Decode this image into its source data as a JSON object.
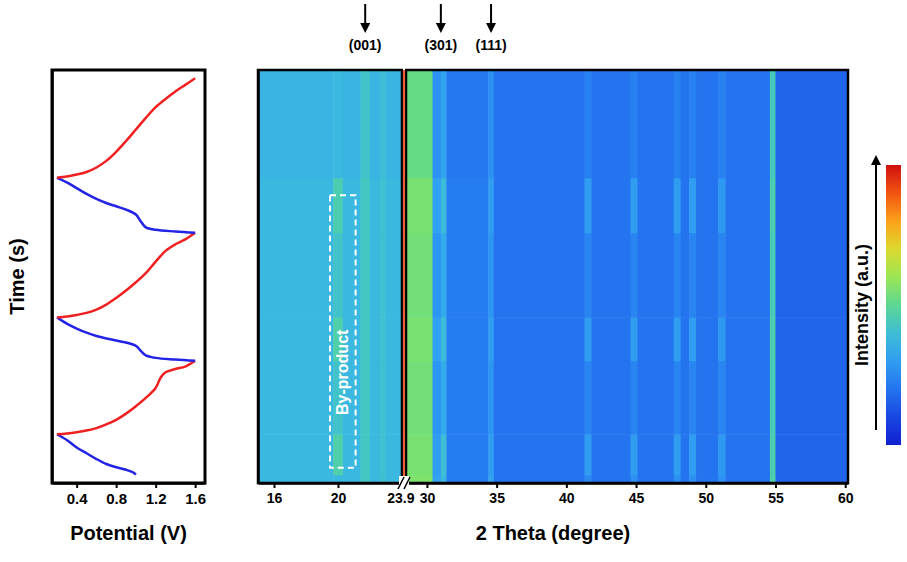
{
  "chart_data": [
    {
      "type": "line",
      "x_label": "Potential (V)",
      "y_label": "Time (s)",
      "xlim": [
        0.15,
        1.7
      ],
      "xticks": [
        0.4,
        0.8,
        1.2,
        1.6
      ],
      "ylim": [
        0,
        100
      ],
      "tick_labels": "x",
      "series": [
        {
          "color": "#2323e6",
          "x": [
            1.0,
            0.97,
            0.9,
            0.8,
            0.7,
            0.6,
            0.5,
            0.4,
            0.3,
            0.2
          ],
          "values": [
            2.0,
            2.6,
            3.2,
            3.8,
            4.6,
            5.8,
            7.2,
            8.6,
            10.4,
            11.8
          ]
        },
        {
          "color": "#f02020",
          "x": [
            0.2,
            0.3,
            0.4,
            0.5,
            0.6,
            0.7,
            0.8,
            0.9,
            1.0,
            1.1,
            1.2,
            1.25,
            1.3,
            1.4,
            1.5,
            1.6
          ],
          "values": [
            11.8,
            12.0,
            12.3,
            12.7,
            13.3,
            14.2,
            15.3,
            16.8,
            18.6,
            20.6,
            23.0,
            25.5,
            26.8,
            27.6,
            28.2,
            29.6
          ]
        },
        {
          "color": "#2323e6",
          "x": [
            1.6,
            1.4,
            1.2,
            1.1,
            1.05,
            1.0,
            0.9,
            0.8,
            0.7,
            0.6,
            0.5,
            0.4,
            0.3,
            0.2
          ],
          "values": [
            29.6,
            29.9,
            30.3,
            30.9,
            32.0,
            33.2,
            34.0,
            34.5,
            35.0,
            35.6,
            36.4,
            37.4,
            38.6,
            40.1
          ]
        },
        {
          "color": "#f02020",
          "x": [
            0.2,
            0.3,
            0.4,
            0.5,
            0.6,
            0.7,
            0.8,
            0.9,
            1.0,
            1.1,
            1.2,
            1.3,
            1.4,
            1.5,
            1.6
          ],
          "values": [
            40.1,
            40.3,
            40.7,
            41.2,
            42.0,
            43.2,
            44.8,
            46.6,
            48.6,
            50.8,
            53.6,
            56.2,
            57.8,
            59.0,
            60.6
          ]
        },
        {
          "color": "#2323e6",
          "x": [
            1.6,
            1.4,
            1.2,
            1.1,
            1.05,
            1.0,
            0.9,
            0.8,
            0.7,
            0.6,
            0.5,
            0.4,
            0.3,
            0.2
          ],
          "values": [
            60.6,
            60.9,
            61.3,
            61.9,
            63.3,
            65.0,
            66.2,
            67.0,
            67.8,
            68.8,
            70.0,
            71.4,
            72.8,
            73.9
          ]
        },
        {
          "color": "#f02020",
          "x": [
            0.2,
            0.3,
            0.4,
            0.5,
            0.6,
            0.7,
            0.8,
            0.9,
            1.0,
            1.1,
            1.2,
            1.3,
            1.4,
            1.5,
            1.6
          ],
          "values": [
            73.9,
            74.2,
            74.7,
            75.3,
            76.4,
            78.0,
            80.2,
            82.8,
            85.6,
            88.4,
            91.0,
            93.0,
            94.8,
            96.4,
            98.0
          ]
        }
      ]
    },
    {
      "type": "heatmap",
      "x_label": "2 Theta (degree)",
      "ylim": [
        0,
        100
      ],
      "y_bins": [
        0,
        2.0,
        11.8,
        29.6,
        40.1,
        60.6,
        73.9,
        100
      ],
      "tick_labels": "x",
      "intensity_label": "Intensity (a.u.)",
      "intensity_range": [
        0,
        1
      ],
      "panels": [
        {
          "xlim": [
            15,
            24
          ],
          "xticks": [
            16,
            20,
            23.9
          ],
          "x_bins": [
            15,
            19.7,
            20.3,
            21.4,
            22.0,
            22.6,
            23.0,
            24
          ],
          "cells": [
            [
              0.38,
              0.38,
              0.38,
              0.43,
              0.38,
              0.41,
              0.38
            ],
            [
              0.38,
              0.47,
              0.38,
              0.43,
              0.38,
              0.41,
              0.38
            ],
            [
              0.38,
              0.42,
              0.38,
              0.43,
              0.38,
              0.41,
              0.38
            ],
            [
              0.38,
              0.47,
              0.38,
              0.43,
              0.38,
              0.41,
              0.38
            ],
            [
              0.38,
              0.42,
              0.38,
              0.43,
              0.38,
              0.41,
              0.38
            ],
            [
              0.38,
              0.46,
              0.38,
              0.43,
              0.38,
              0.41,
              0.38
            ],
            [
              0.37,
              0.38,
              0.37,
              0.42,
              0.37,
              0.4,
              0.37
            ]
          ]
        },
        {
          "xlim": [
            28.5,
            60.2
          ],
          "xticks": [
            30,
            35,
            40,
            45,
            50,
            55,
            60
          ],
          "x_bins": [
            28.5,
            30.4,
            31.0,
            31.4,
            34.4,
            34.8,
            41.3,
            41.8,
            44.6,
            45.1,
            47.7,
            48.2,
            48.8,
            49.3,
            50.9,
            51.4,
            54.6,
            55.0,
            60.2
          ],
          "cells": [
            [
              0.56,
              0.32,
              0.38,
              0.22,
              0.32,
              0.2,
              0.25,
              0.2,
              0.27,
              0.2,
              0.27,
              0.2,
              0.27,
              0.2,
              0.27,
              0.2,
              0.47,
              0.17
            ],
            [
              0.55,
              0.3,
              0.4,
              0.22,
              0.3,
              0.2,
              0.3,
              0.2,
              0.3,
              0.2,
              0.3,
              0.2,
              0.3,
              0.2,
              0.29,
              0.2,
              0.46,
              0.17
            ],
            [
              0.54,
              0.28,
              0.34,
              0.22,
              0.28,
              0.2,
              0.24,
              0.2,
              0.24,
              0.2,
              0.24,
              0.2,
              0.24,
              0.2,
              0.24,
              0.2,
              0.45,
              0.17
            ],
            [
              0.55,
              0.31,
              0.39,
              0.22,
              0.3,
              0.2,
              0.3,
              0.2,
              0.3,
              0.2,
              0.3,
              0.2,
              0.3,
              0.2,
              0.29,
              0.2,
              0.46,
              0.17
            ],
            [
              0.54,
              0.28,
              0.34,
              0.22,
              0.28,
              0.2,
              0.24,
              0.2,
              0.24,
              0.2,
              0.24,
              0.2,
              0.24,
              0.2,
              0.24,
              0.2,
              0.45,
              0.17
            ],
            [
              0.55,
              0.31,
              0.39,
              0.22,
              0.3,
              0.2,
              0.3,
              0.2,
              0.3,
              0.2,
              0.3,
              0.2,
              0.3,
              0.2,
              0.29,
              0.2,
              0.46,
              0.17
            ],
            [
              0.52,
              0.27,
              0.32,
              0.21,
              0.27,
              0.2,
              0.23,
              0.2,
              0.23,
              0.2,
              0.23,
              0.2,
              0.23,
              0.2,
              0.23,
              0.2,
              0.44,
              0.17
            ]
          ]
        }
      ],
      "annotations": [
        {
          "label": "(001)",
          "x": 21.7
        },
        {
          "label": "(301)",
          "x": 31.0
        },
        {
          "label": "(111)",
          "x": 34.6
        }
      ],
      "region": {
        "label": "By-product",
        "x": [
          19.5,
          21.1
        ],
        "y": [
          3.7,
          69.7
        ]
      }
    }
  ]
}
